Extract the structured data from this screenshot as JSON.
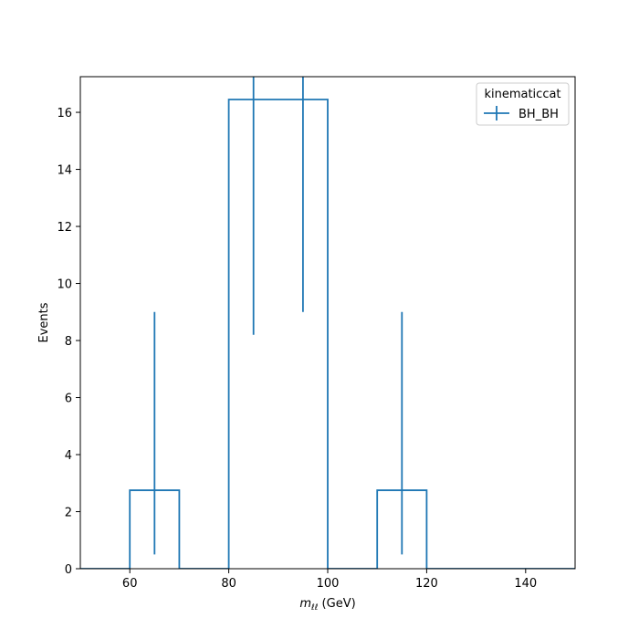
{
  "chart_data": {
    "type": "histogram-step",
    "xlabel_main": "m",
    "xlabel_sub": "ℓℓ",
    "xlabel_unit": " (GeV)",
    "ylabel": "Events",
    "xlim": [
      50,
      150
    ],
    "ylim": [
      0,
      17.25
    ],
    "xticks": [
      60,
      80,
      100,
      120,
      140
    ],
    "yticks": [
      0,
      2,
      4,
      6,
      8,
      10,
      12,
      14,
      16
    ],
    "color": "#1f77b4",
    "legend": {
      "title": "kinematiccat",
      "placement": "top-right",
      "entries": [
        "BH_BH"
      ]
    },
    "series": [
      {
        "name": "BH_BH",
        "bin_edges": [
          50,
          60,
          70,
          80,
          90,
          100,
          110,
          120,
          130,
          140,
          150
        ],
        "values": [
          0,
          2.75,
          0,
          16.45,
          16.45,
          0,
          2.75,
          0,
          0,
          0
        ],
        "errorbars": [
          {
            "x": 65,
            "low": 0.5,
            "high": 9.0
          },
          {
            "x": 85,
            "low": 8.2,
            "high": 17.25
          },
          {
            "x": 95,
            "low": 9.0,
            "high": 17.25
          },
          {
            "x": 115,
            "low": 0.5,
            "high": 9.0
          }
        ]
      }
    ]
  }
}
